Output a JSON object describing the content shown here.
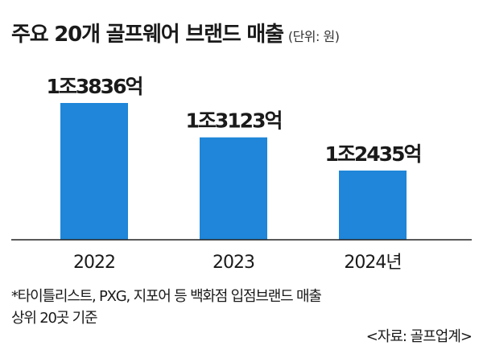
{
  "header": {
    "title": "주요 20개 골프웨어 브랜드 매출",
    "unit": "(단위: 원)"
  },
  "chart_data": {
    "type": "bar",
    "title": "주요 20개 골프웨어 브랜드 매출",
    "unit": "원",
    "categories": [
      "2022",
      "2023",
      "2024년"
    ],
    "values": [
      1383600000000,
      1312300000000,
      1243500000000
    ],
    "value_labels": [
      "1조3836억",
      "1조3123억",
      "1조2435억"
    ],
    "bar_color": "#1f86d9",
    "xlabel": "",
    "ylabel": "",
    "grid": false
  },
  "notes": {
    "footnote_line1": "*타이틀리스트, PXG, 지포어 등 백화점 입점브랜드 매출",
    "footnote_line2": "상위 20곳 기준",
    "source": "<자료: 골프업계>"
  }
}
